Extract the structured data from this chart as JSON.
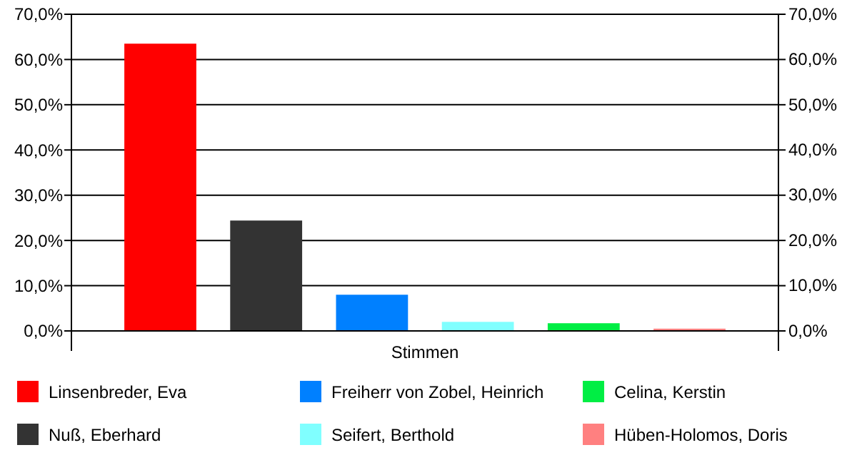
{
  "chart_data": {
    "type": "bar",
    "categories": [
      "Stimmen"
    ],
    "series": [
      {
        "name": "Linsenbreder, Eva",
        "color": "#ff0000",
        "values": [
          63.5
        ]
      },
      {
        "name": "Nuß, Eberhard",
        "color": "#333333",
        "values": [
          24.4
        ]
      },
      {
        "name": "Freiherr von Zobel, Heinrich",
        "color": "#0080ff",
        "values": [
          8.0
        ]
      },
      {
        "name": "Seifert, Berthold",
        "color": "#80ffff",
        "values": [
          2.0
        ]
      },
      {
        "name": "Celina, Kerstin",
        "color": "#00ee44",
        "values": [
          1.7
        ]
      },
      {
        "name": "Hüben-Holomos, Doris",
        "color": "#ff8080",
        "values": [
          0.5
        ]
      }
    ],
    "ylim": [
      0,
      70
    ],
    "yticks": [
      {
        "value": 0,
        "label": "0,0%"
      },
      {
        "value": 10,
        "label": "10,0%"
      },
      {
        "value": 20,
        "label": "20,0%"
      },
      {
        "value": 30,
        "label": "30,0%"
      },
      {
        "value": 40,
        "label": "40,0%"
      },
      {
        "value": 50,
        "label": "50,0%"
      },
      {
        "value": 60,
        "label": "60,0%"
      },
      {
        "value": 70,
        "label": "70,0%"
      }
    ],
    "grid": "y",
    "legend": "bottom"
  }
}
